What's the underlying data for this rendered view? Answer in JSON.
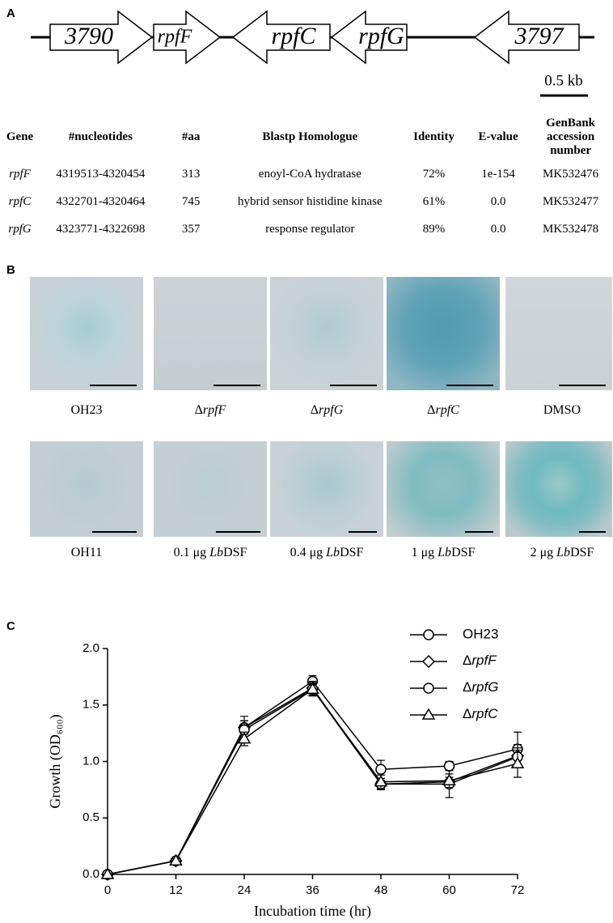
{
  "panel_a": {
    "label": "A",
    "genes": [
      {
        "name": "3790",
        "dir": "right"
      },
      {
        "name": "rpfF",
        "dir": "right"
      },
      {
        "name": "rpfC",
        "dir": "left"
      },
      {
        "name": "rpfG",
        "dir": "left"
      },
      {
        "name": "3797",
        "dir": "left"
      }
    ],
    "scale": "0.5 kb"
  },
  "table": {
    "header": [
      "Gene",
      "#nucleotides",
      "#aa",
      "Blastp Homologue",
      "Identity",
      "E-value",
      "GenBank accession number"
    ],
    "rows": [
      [
        "rpfF",
        "4319513-4320454",
        "313",
        "enoyl-CoA hydratase",
        "72%",
        "1e-154",
        "MK532476"
      ],
      [
        "rpfC",
        "4322701-4320464",
        "745",
        "hybrid sensor histidine kinase",
        "61%",
        "0.0",
        "MK532477"
      ],
      [
        "rpfG",
        "4323771-4322698",
        "357",
        "response regulator",
        "89%",
        "0.0",
        "MK532478"
      ]
    ]
  },
  "panel_b": {
    "label": "B",
    "images": [
      {
        "label": [
          {
            "text": "OH23"
          }
        ]
      },
      {
        "label": [
          {
            "text": "Δ"
          },
          {
            "text": "rpfF",
            "italic": true
          }
        ]
      },
      {
        "label": [
          {
            "text": "Δ"
          },
          {
            "text": "rpfG",
            "italic": true
          }
        ]
      },
      {
        "label": [
          {
            "text": "Δ"
          },
          {
            "text": "rpfC",
            "italic": true
          }
        ]
      },
      {
        "label": [
          {
            "text": "DMSO"
          }
        ]
      },
      {
        "label": [
          {
            "text": "OH11"
          }
        ]
      },
      {
        "label": [
          {
            "text": "0.1 μg "
          },
          {
            "text": "Lb",
            "italic": true
          },
          {
            "text": "DSF"
          }
        ]
      },
      {
        "label": [
          {
            "text": "0.4 μg "
          },
          {
            "text": "Lb",
            "italic": true
          },
          {
            "text": "DSF"
          }
        ]
      },
      {
        "label": [
          {
            "text": "1 μg "
          },
          {
            "text": "Lb",
            "italic": true
          },
          {
            "text": "DSF"
          }
        ]
      },
      {
        "label": [
          {
            "text": "2 μg "
          },
          {
            "text": "Lb",
            "italic": true
          },
          {
            "text": "DSF"
          }
        ]
      }
    ]
  },
  "panel_c": {
    "label": "C"
  },
  "chart_data": {
    "type": "line",
    "xlabel": "Incubation time (hr)",
    "ylabel": "Growth (OD₆₀₀)",
    "x": [
      0,
      12,
      24,
      36,
      48,
      60,
      72
    ],
    "xlim": [
      0,
      72
    ],
    "xticks": [
      0,
      12,
      24,
      36,
      48,
      60,
      72
    ],
    "ylim": [
      0,
      2
    ],
    "yticks": [
      {
        "value": 0,
        "label": "0.0"
      },
      {
        "value": 0.5,
        "label": "0.5"
      },
      {
        "value": 1,
        "label": "1.0"
      },
      {
        "value": 1.5,
        "label": "1.5"
      },
      {
        "value": 2,
        "label": "2.0"
      }
    ],
    "series": [
      {
        "name": "OH23",
        "color": "#000000",
        "marker": "circle",
        "values": [
          0,
          0.12,
          1.3,
          1.71,
          0.93,
          0.96,
          1.11
        ],
        "errors": [
          0,
          0.02,
          0.06,
          0.05,
          0.08,
          0.04,
          0.15
        ]
      },
      {
        "name": "ΔrpfF",
        "color": "#000000",
        "marker": "diamond",
        "values": [
          0,
          0.12,
          1.3,
          1.65,
          0.8,
          0.82,
          1.05
        ],
        "errors": [
          0,
          0.02,
          0.1,
          0.06,
          0.05,
          0.04,
          0.1
        ]
      },
      {
        "name": "ΔrpfG",
        "color": "#000000",
        "marker": "circle",
        "values": [
          0,
          0.12,
          1.28,
          1.64,
          0.8,
          0.8,
          1.04
        ],
        "errors": [
          0,
          0.02,
          0.08,
          0.06,
          0.05,
          0.12,
          0.08
        ]
      },
      {
        "name": "ΔrpfC",
        "color": "#000000",
        "marker": "triangle",
        "values": [
          0,
          0.12,
          1.2,
          1.64,
          0.82,
          0.83,
          0.98
        ],
        "errors": [
          0,
          0.02,
          0.06,
          0.05,
          0.06,
          0.06,
          0.12
        ]
      }
    ]
  }
}
